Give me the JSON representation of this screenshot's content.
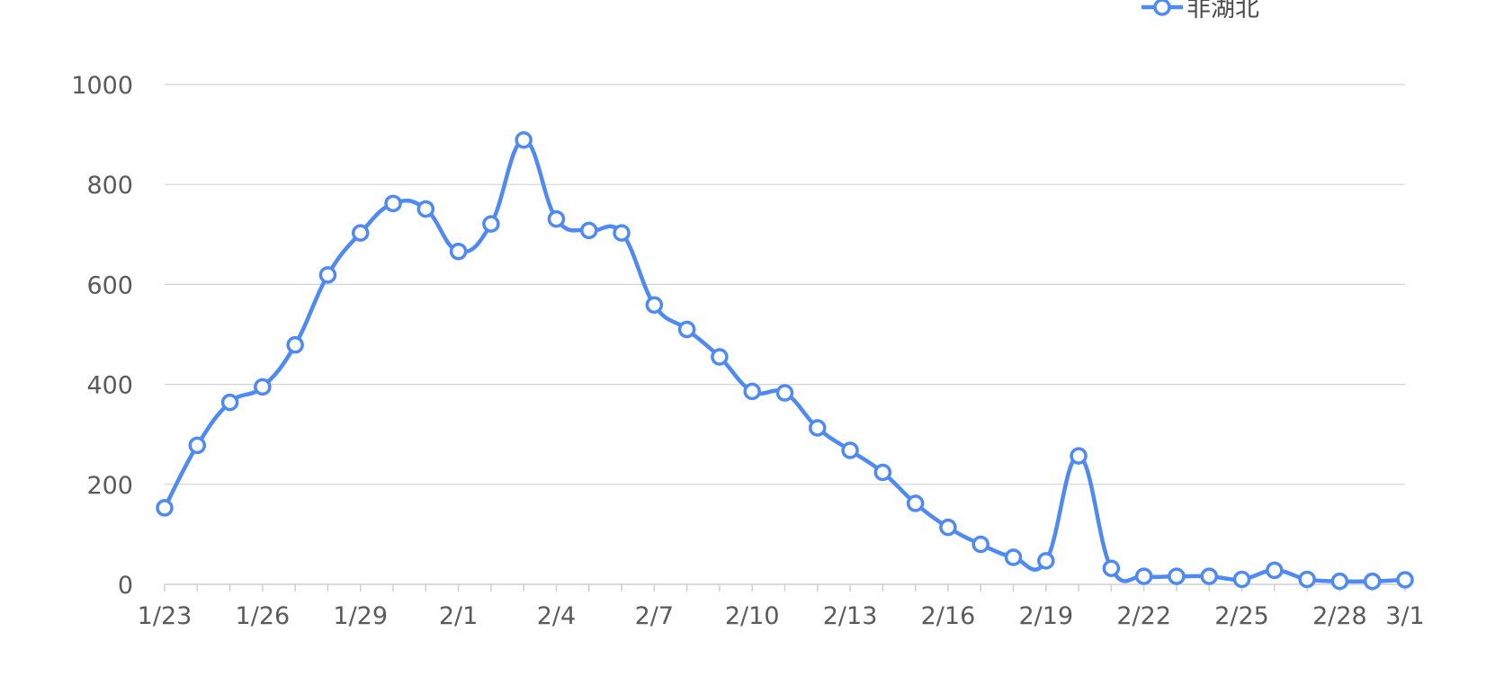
{
  "chart_data": {
    "type": "line",
    "x": [
      "1/23",
      "1/24",
      "1/25",
      "1/26",
      "1/27",
      "1/28",
      "1/29",
      "1/30",
      "1/31",
      "2/1",
      "2/2",
      "2/3",
      "2/4",
      "2/5",
      "2/6",
      "2/7",
      "2/8",
      "2/9",
      "2/10",
      "2/11",
      "2/12",
      "2/13",
      "2/14",
      "2/15",
      "2/16",
      "2/17",
      "2/18",
      "2/19",
      "2/20",
      "2/21",
      "2/22",
      "2/23",
      "2/24",
      "2/25",
      "2/26",
      "2/27",
      "2/28",
      "2/29",
      "3/1"
    ],
    "x_tick_labels": [
      "1/23",
      "1/26",
      "1/29",
      "2/1",
      "2/4",
      "2/7",
      "2/10",
      "2/13",
      "2/16",
      "2/19",
      "2/22",
      "2/25",
      "2/28",
      "3/1"
    ],
    "series": [
      {
        "name": "非湖北",
        "color": "#4e8af2",
        "values": [
          153,
          278,
          364,
          395,
          479,
          619,
          703,
          762,
          751,
          666,
          721,
          889,
          731,
          708,
          703,
          559,
          510,
          455,
          386,
          383,
          313,
          268,
          224,
          162,
          114,
          80,
          54,
          47,
          257,
          32,
          16,
          16,
          16,
          10,
          28,
          10,
          6,
          6,
          9
        ]
      }
    ],
    "y_ticks": [
      0,
      200,
      400,
      600,
      800,
      1000
    ],
    "ylim": [
      0,
      1000
    ],
    "grid": true,
    "legend_position": "top-right",
    "title": "",
    "xlabel": "",
    "ylabel": ""
  }
}
